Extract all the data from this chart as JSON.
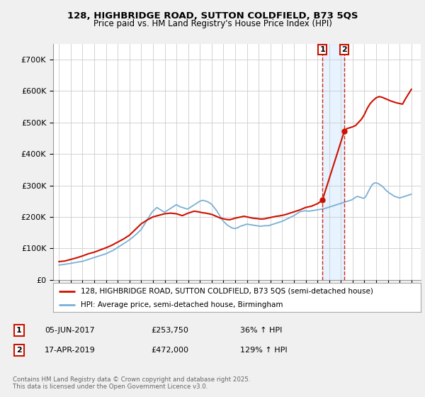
{
  "title_line1": "128, HIGHBRIDGE ROAD, SUTTON COLDFIELD, B73 5QS",
  "title_line2": "Price paid vs. HM Land Registry's House Price Index (HPI)",
  "ylim": [
    0,
    750000
  ],
  "yticks": [
    0,
    100000,
    200000,
    300000,
    400000,
    500000,
    600000,
    700000
  ],
  "ytick_labels": [
    "£0",
    "£100K",
    "£200K",
    "£300K",
    "£400K",
    "£500K",
    "£600K",
    "£700K"
  ],
  "xlim_start": 1994.5,
  "xlim_end": 2025.8,
  "hpi_color": "#7bafd4",
  "price_color": "#cc1100",
  "background_color": "#f0f0f0",
  "plot_bg_color": "#ffffff",
  "grid_color": "#cccccc",
  "shading_color": "#ddeeff",
  "legend_label_price": "128, HIGHBRIDGE ROAD, SUTTON COLDFIELD, B73 5QS (semi-detached house)",
  "legend_label_hpi": "HPI: Average price, semi-detached house, Birmingham",
  "transaction1_date": "05-JUN-2017",
  "transaction1_price": "£253,750",
  "transaction1_hpi": "36% ↑ HPI",
  "transaction2_date": "17-APR-2019",
  "transaction2_price": "£472,000",
  "transaction2_hpi": "129% ↑ HPI",
  "footer": "Contains HM Land Registry data © Crown copyright and database right 2025.\nThis data is licensed under the Open Government Licence v3.0.",
  "vline1_x": 2017.43,
  "vline2_x": 2019.29,
  "marker1_y": 253750,
  "marker2_y": 472000,
  "hpi_x": [
    1995.0,
    1995.08,
    1995.17,
    1995.25,
    1995.33,
    1995.42,
    1995.5,
    1995.58,
    1995.67,
    1995.75,
    1995.83,
    1995.92,
    1996.0,
    1996.08,
    1996.17,
    1996.25,
    1996.33,
    1996.42,
    1996.5,
    1996.58,
    1996.67,
    1996.75,
    1996.83,
    1996.92,
    1997.0,
    1997.08,
    1997.17,
    1997.25,
    1997.33,
    1997.42,
    1997.5,
    1997.58,
    1997.67,
    1997.75,
    1997.83,
    1997.92,
    1998.0,
    1998.08,
    1998.17,
    1998.25,
    1998.33,
    1998.42,
    1998.5,
    1998.58,
    1998.67,
    1998.75,
    1998.83,
    1998.92,
    1999.0,
    1999.08,
    1999.17,
    1999.25,
    1999.33,
    1999.42,
    1999.5,
    1999.58,
    1999.67,
    1999.75,
    1999.83,
    1999.92,
    2000.0,
    2000.08,
    2000.17,
    2000.25,
    2000.33,
    2000.42,
    2000.5,
    2000.58,
    2000.67,
    2000.75,
    2000.83,
    2000.92,
    2001.0,
    2001.08,
    2001.17,
    2001.25,
    2001.33,
    2001.42,
    2001.5,
    2001.58,
    2001.67,
    2001.75,
    2001.83,
    2001.92,
    2002.0,
    2002.08,
    2002.17,
    2002.25,
    2002.33,
    2002.42,
    2002.5,
    2002.58,
    2002.67,
    2002.75,
    2002.83,
    2002.92,
    2003.0,
    2003.08,
    2003.17,
    2003.25,
    2003.33,
    2003.42,
    2003.5,
    2003.58,
    2003.67,
    2003.75,
    2003.83,
    2003.92,
    2004.0,
    2004.08,
    2004.17,
    2004.25,
    2004.33,
    2004.42,
    2004.5,
    2004.58,
    2004.67,
    2004.75,
    2004.83,
    2004.92,
    2005.0,
    2005.08,
    2005.17,
    2005.25,
    2005.33,
    2005.42,
    2005.5,
    2005.58,
    2005.67,
    2005.75,
    2005.83,
    2005.92,
    2006.0,
    2006.08,
    2006.17,
    2006.25,
    2006.33,
    2006.42,
    2006.5,
    2006.58,
    2006.67,
    2006.75,
    2006.83,
    2006.92,
    2007.0,
    2007.08,
    2007.17,
    2007.25,
    2007.33,
    2007.42,
    2007.5,
    2007.58,
    2007.67,
    2007.75,
    2007.83,
    2007.92,
    2008.0,
    2008.08,
    2008.17,
    2008.25,
    2008.33,
    2008.42,
    2008.5,
    2008.58,
    2008.67,
    2008.75,
    2008.83,
    2008.92,
    2009.0,
    2009.08,
    2009.17,
    2009.25,
    2009.33,
    2009.42,
    2009.5,
    2009.58,
    2009.67,
    2009.75,
    2009.83,
    2009.92,
    2010.0,
    2010.08,
    2010.17,
    2010.25,
    2010.33,
    2010.42,
    2010.5,
    2010.58,
    2010.67,
    2010.75,
    2010.83,
    2010.92,
    2011.0,
    2011.08,
    2011.17,
    2011.25,
    2011.33,
    2011.42,
    2011.5,
    2011.58,
    2011.67,
    2011.75,
    2011.83,
    2011.92,
    2012.0,
    2012.08,
    2012.17,
    2012.25,
    2012.33,
    2012.42,
    2012.5,
    2012.58,
    2012.67,
    2012.75,
    2012.83,
    2012.92,
    2013.0,
    2013.08,
    2013.17,
    2013.25,
    2013.33,
    2013.42,
    2013.5,
    2013.58,
    2013.67,
    2013.75,
    2013.83,
    2013.92,
    2014.0,
    2014.08,
    2014.17,
    2014.25,
    2014.33,
    2014.42,
    2014.5,
    2014.58,
    2014.67,
    2014.75,
    2014.83,
    2014.92,
    2015.0,
    2015.08,
    2015.17,
    2015.25,
    2015.33,
    2015.42,
    2015.5,
    2015.58,
    2015.67,
    2015.75,
    2015.83,
    2015.92,
    2016.0,
    2016.08,
    2016.17,
    2016.25,
    2016.33,
    2016.42,
    2016.5,
    2016.58,
    2016.67,
    2016.75,
    2016.83,
    2016.92,
    2017.0,
    2017.08,
    2017.17,
    2017.25,
    2017.33,
    2017.42,
    2017.5,
    2017.58,
    2017.67,
    2017.75,
    2017.83,
    2017.92,
    2018.0,
    2018.08,
    2018.17,
    2018.25,
    2018.33,
    2018.42,
    2018.5,
    2018.58,
    2018.67,
    2018.75,
    2018.83,
    2018.92,
    2019.0,
    2019.08,
    2019.17,
    2019.25,
    2019.33,
    2019.42,
    2019.5,
    2019.58,
    2019.67,
    2019.75,
    2019.83,
    2019.92,
    2020.0,
    2020.08,
    2020.17,
    2020.25,
    2020.33,
    2020.42,
    2020.5,
    2020.58,
    2020.67,
    2020.75,
    2020.83,
    2020.92,
    2021.0,
    2021.08,
    2021.17,
    2021.25,
    2021.33,
    2021.42,
    2021.5,
    2021.58,
    2021.67,
    2021.75,
    2021.83,
    2021.92,
    2022.0,
    2022.08,
    2022.17,
    2022.25,
    2022.33,
    2022.42,
    2022.5,
    2022.58,
    2022.67,
    2022.75,
    2022.83,
    2022.92,
    2023.0,
    2023.08,
    2023.17,
    2023.25,
    2023.33,
    2023.42,
    2023.5,
    2023.58,
    2023.67,
    2023.75,
    2023.83,
    2023.92,
    2024.0,
    2024.08,
    2024.17,
    2024.25,
    2024.33,
    2024.42,
    2024.5,
    2024.58,
    2024.67,
    2024.75,
    2024.83,
    2024.92,
    2025.0
  ],
  "hpi_y": [
    47000,
    47500,
    48000,
    48200,
    48500,
    49000,
    49500,
    50000,
    50500,
    51000,
    51500,
    52000,
    52500,
    53000,
    53500,
    54000,
    54500,
    55000,
    55500,
    56000,
    56500,
    57000,
    57500,
    58000,
    59000,
    60000,
    61000,
    62000,
    63000,
    64000,
    65000,
    66000,
    67000,
    68000,
    69000,
    70000,
    71000,
    72000,
    73000,
    74000,
    75000,
    76000,
    77000,
    78000,
    79000,
    80000,
    81000,
    82000,
    83000,
    84500,
    86000,
    87500,
    89000,
    90500,
    92000,
    93500,
    95000,
    97000,
    99000,
    101000,
    103000,
    105000,
    107000,
    109000,
    111000,
    113000,
    115000,
    117000,
    119000,
    121000,
    123000,
    125000,
    127000,
    129500,
    132000,
    134500,
    137000,
    139500,
    142000,
    145000,
    148000,
    151000,
    154000,
    157000,
    160000,
    165000,
    170000,
    175000,
    180000,
    185000,
    190000,
    195000,
    200000,
    205000,
    210000,
    215000,
    218000,
    221000,
    224000,
    227000,
    230000,
    228000,
    226000,
    224000,
    222000,
    220000,
    218000,
    216000,
    215000,
    217000,
    219000,
    221000,
    223000,
    225000,
    227000,
    229000,
    231000,
    233000,
    235000,
    237000,
    239000,
    237000,
    235000,
    233000,
    232000,
    231000,
    230000,
    229000,
    228000,
    227000,
    226000,
    225000,
    226000,
    228000,
    230000,
    232000,
    234000,
    236000,
    238000,
    240000,
    242000,
    244000,
    246000,
    248000,
    250000,
    251000,
    252000,
    252500,
    252000,
    251000,
    250000,
    249000,
    248000,
    246000,
    244000,
    242000,
    240000,
    236000,
    232000,
    228000,
    224000,
    220000,
    215000,
    210000,
    205000,
    200000,
    195000,
    190000,
    186000,
    183000,
    180000,
    177000,
    174000,
    172000,
    170000,
    168000,
    166000,
    165000,
    164000,
    163000,
    163500,
    164000,
    165000,
    166500,
    168000,
    170000,
    171000,
    172000,
    173000,
    174000,
    175000,
    176000,
    177000,
    176500,
    176000,
    175500,
    175000,
    174500,
    174000,
    173500,
    173000,
    172500,
    172000,
    171500,
    171000,
    170500,
    170000,
    170500,
    171000,
    171500,
    172000,
    172000,
    172000,
    172000,
    172500,
    173000,
    174000,
    175000,
    176000,
    177000,
    178000,
    179000,
    180000,
    181000,
    182000,
    183000,
    184000,
    185000,
    186000,
    187500,
    189000,
    190500,
    192000,
    193500,
    195000,
    196500,
    198000,
    199500,
    201000,
    202500,
    204000,
    206000,
    208000,
    210000,
    212000,
    214000,
    216000,
    217000,
    217500,
    218000,
    218500,
    219000,
    219500,
    219000,
    218500,
    218000,
    218500,
    219000,
    219500,
    220000,
    220500,
    221000,
    221500,
    222000,
    222500,
    223000,
    223500,
    224000,
    224500,
    225000,
    225500,
    226000,
    227000,
    228000,
    229000,
    230000,
    231000,
    232000,
    233000,
    234000,
    235000,
    236000,
    237000,
    238000,
    239000,
    240000,
    241000,
    242000,
    243000,
    244000,
    245000,
    246000,
    247000,
    248000,
    249000,
    250000,
    251000,
    252000,
    253000,
    254000,
    256000,
    258000,
    260000,
    262000,
    264000,
    265000,
    264000,
    263000,
    262000,
    261000,
    260000,
    259000,
    260000,
    263000,
    268000,
    274000,
    280000,
    286000,
    292000,
    298000,
    302000,
    305000,
    307000,
    308000,
    308000,
    307000,
    306000,
    304000,
    302000,
    300000,
    298000,
    295000,
    292000,
    288000,
    285000,
    282000,
    280000,
    277000,
    275000,
    273000,
    271000,
    269000,
    267000,
    265000,
    264000,
    263000,
    262000,
    261000,
    260000,
    261000,
    262000,
    263000,
    264000,
    265000,
    266000,
    267000,
    268000,
    269000,
    270000,
    271000,
    272000
  ],
  "price_x": [
    1995.0,
    1995.5,
    1996.0,
    1996.5,
    1997.0,
    1997.5,
    1998.0,
    1998.5,
    1999.0,
    1999.5,
    2000.0,
    2000.5,
    2001.0,
    2001.5,
    2002.0,
    2002.5,
    2003.0,
    2003.5,
    2004.0,
    2004.5,
    2005.0,
    2005.25,
    2005.5,
    2005.75,
    2006.0,
    2006.25,
    2006.5,
    2006.75,
    2007.0,
    2007.25,
    2007.5,
    2007.75,
    2008.0,
    2008.25,
    2008.5,
    2008.75,
    2009.0,
    2009.25,
    2009.5,
    2009.75,
    2010.0,
    2010.25,
    2010.5,
    2010.75,
    2011.0,
    2011.25,
    2011.5,
    2011.75,
    2012.0,
    2012.25,
    2012.5,
    2012.75,
    2013.0,
    2013.25,
    2013.5,
    2013.75,
    2014.0,
    2014.25,
    2014.5,
    2014.75,
    2015.0,
    2015.25,
    2015.5,
    2015.75,
    2016.0,
    2016.25,
    2016.5,
    2016.75,
    2017.0,
    2017.25,
    2017.43,
    2019.29,
    2019.5,
    2019.75,
    2020.0,
    2020.25,
    2020.5,
    2020.75,
    2021.0,
    2021.25,
    2021.5,
    2021.75,
    2022.0,
    2022.25,
    2022.5,
    2022.75,
    2023.0,
    2023.25,
    2023.5,
    2023.75,
    2024.0,
    2024.25,
    2024.5,
    2024.75,
    2025.0
  ],
  "price_y": [
    58000,
    60000,
    65000,
    70000,
    76000,
    83000,
    88000,
    95000,
    102000,
    110000,
    120000,
    130000,
    142000,
    160000,
    178000,
    190000,
    200000,
    205000,
    210000,
    212000,
    210000,
    207000,
    204000,
    208000,
    212000,
    215000,
    218000,
    217000,
    215000,
    213000,
    212000,
    210000,
    208000,
    204000,
    200000,
    196000,
    194000,
    192000,
    191000,
    193000,
    196000,
    198000,
    200000,
    202000,
    200000,
    198000,
    196000,
    195000,
    194000,
    193000,
    194000,
    196000,
    198000,
    200000,
    202000,
    203000,
    205000,
    207000,
    210000,
    213000,
    216000,
    219000,
    222000,
    226000,
    230000,
    232000,
    234000,
    238000,
    242000,
    248000,
    253750,
    472000,
    480000,
    483000,
    486000,
    490000,
    500000,
    510000,
    525000,
    545000,
    560000,
    570000,
    578000,
    582000,
    580000,
    576000,
    572000,
    568000,
    565000,
    562000,
    560000,
    558000,
    575000,
    590000,
    605000
  ]
}
